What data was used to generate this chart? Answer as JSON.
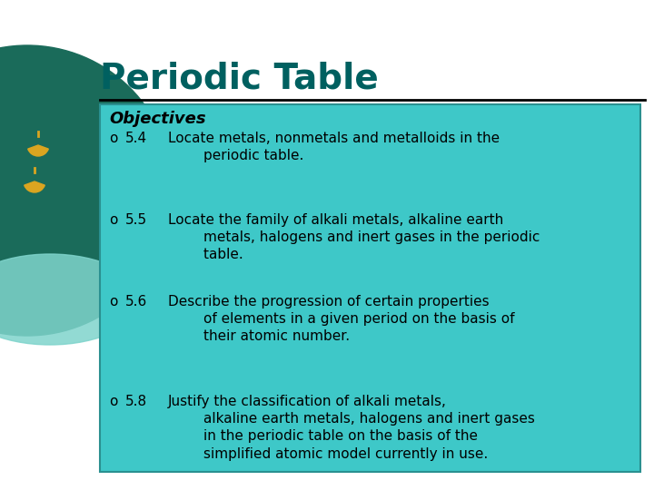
{
  "bg_color": "#ffffff",
  "left_circle_color": "#1a6b5a",
  "left_circle_light": "#7fd4cc",
  "title": "Periodic Table",
  "title_color": "#006060",
  "title_fontsize": 28,
  "divider_color": "#000000",
  "box_color": "#3ec8c8",
  "box_border_color": "#2a9090",
  "objectives_label": "Objectives",
  "text_color": "#000000",
  "bullet_items": [
    {
      "number": "5.4",
      "lines": [
        "Locate metals, nonmetals and metalloids in the",
        "        periodic table."
      ]
    },
    {
      "number": "5.5",
      "lines": [
        "Locate the family of alkali metals, alkaline earth",
        "        metals, halogens and inert gases in the periodic",
        "        table."
      ]
    },
    {
      "number": "5.6",
      "lines": [
        "Describe the progression of certain properties",
        "        of elements in a given period on the basis of",
        "        their atomic number."
      ]
    },
    {
      "number": "5.8",
      "lines": [
        "Justify the classification of alkali metals,",
        "        alkaline earth metals, halogens and inert gases",
        "        in the periodic table on the basis of the",
        "        simplified atomic model currently in use."
      ]
    }
  ]
}
